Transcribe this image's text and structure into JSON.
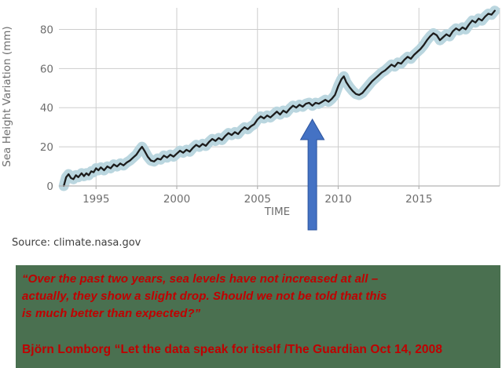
{
  "chart_data": {
    "type": "line",
    "title": "",
    "xlabel": "TIME",
    "ylabel": "Sea Height Variation (mm)",
    "xlim": [
      1992.7,
      2020
    ],
    "ylim": [
      0,
      91
    ],
    "x_ticks": [
      1995,
      2000,
      2005,
      2010,
      2015
    ],
    "y_ticks": [
      0,
      20,
      40,
      60,
      80
    ],
    "grid": true,
    "legend": "none",
    "axis_label_color": "#6e6e6e",
    "grid_color": "#cdcdcd",
    "series": [
      {
        "name": "Sea height variation",
        "line_color": "#1c1c1c",
        "band_color": "#bad6df",
        "band_halfwidth_mm": 2.6,
        "points": [
          [
            1993.0,
            0
          ],
          [
            1993.15,
            4.5
          ],
          [
            1993.3,
            6
          ],
          [
            1993.45,
            4
          ],
          [
            1993.6,
            3.5
          ],
          [
            1993.75,
            5.5
          ],
          [
            1993.9,
            4.5
          ],
          [
            1994.1,
            6.5
          ],
          [
            1994.25,
            5
          ],
          [
            1994.4,
            6.5
          ],
          [
            1994.55,
            5.5
          ],
          [
            1994.7,
            7.5
          ],
          [
            1994.85,
            7
          ],
          [
            1995.0,
            9
          ],
          [
            1995.15,
            8
          ],
          [
            1995.3,
            9.5
          ],
          [
            1995.5,
            8
          ],
          [
            1995.7,
            10
          ],
          [
            1995.9,
            9
          ],
          [
            1996.1,
            11
          ],
          [
            1996.3,
            10
          ],
          [
            1996.5,
            11.5
          ],
          [
            1996.7,
            10.5
          ],
          [
            1996.9,
            12
          ],
          [
            1997.1,
            13
          ],
          [
            1997.3,
            14.5
          ],
          [
            1997.5,
            16
          ],
          [
            1997.7,
            18.5
          ],
          [
            1997.85,
            20
          ],
          [
            1998.0,
            18
          ],
          [
            1998.2,
            15
          ],
          [
            1998.4,
            13
          ],
          [
            1998.6,
            12.5
          ],
          [
            1998.8,
            14
          ],
          [
            1999.0,
            13.5
          ],
          [
            1999.2,
            15.5
          ],
          [
            1999.4,
            14.5
          ],
          [
            1999.6,
            16
          ],
          [
            1999.8,
            15
          ],
          [
            2000.0,
            16.5
          ],
          [
            2000.2,
            18
          ],
          [
            2000.4,
            17
          ],
          [
            2000.6,
            18.5
          ],
          [
            2000.8,
            17.5
          ],
          [
            2001.0,
            19.5
          ],
          [
            2001.2,
            21
          ],
          [
            2001.4,
            20
          ],
          [
            2001.6,
            21.5
          ],
          [
            2001.8,
            20.5
          ],
          [
            2002.0,
            22.5
          ],
          [
            2002.2,
            24
          ],
          [
            2002.4,
            23
          ],
          [
            2002.6,
            24.5
          ],
          [
            2002.8,
            23.5
          ],
          [
            2003.0,
            25.5
          ],
          [
            2003.2,
            27
          ],
          [
            2003.4,
            26
          ],
          [
            2003.6,
            27.5
          ],
          [
            2003.8,
            26.5
          ],
          [
            2004.0,
            28.5
          ],
          [
            2004.2,
            30
          ],
          [
            2004.4,
            29
          ],
          [
            2004.6,
            30.5
          ],
          [
            2004.8,
            31.5
          ],
          [
            2005.0,
            34
          ],
          [
            2005.2,
            35.5
          ],
          [
            2005.4,
            34.5
          ],
          [
            2005.6,
            36
          ],
          [
            2005.8,
            35
          ],
          [
            2006.0,
            36.5
          ],
          [
            2006.2,
            38
          ],
          [
            2006.4,
            36.5
          ],
          [
            2006.6,
            38.5
          ],
          [
            2006.8,
            37.5
          ],
          [
            2007.0,
            39.5
          ],
          [
            2007.2,
            41
          ],
          [
            2007.4,
            40
          ],
          [
            2007.6,
            41.5
          ],
          [
            2007.8,
            40.5
          ],
          [
            2008.0,
            42
          ],
          [
            2008.2,
            42.5
          ],
          [
            2008.4,
            41
          ],
          [
            2008.6,
            42.5
          ],
          [
            2008.8,
            42
          ],
          [
            2009.0,
            43
          ],
          [
            2009.2,
            44
          ],
          [
            2009.4,
            43
          ],
          [
            2009.6,
            44.5
          ],
          [
            2009.8,
            46.5
          ],
          [
            2010.0,
            51
          ],
          [
            2010.2,
            54.5
          ],
          [
            2010.35,
            56
          ],
          [
            2010.5,
            53
          ],
          [
            2010.7,
            50.5
          ],
          [
            2010.9,
            48.5
          ],
          [
            2011.1,
            47
          ],
          [
            2011.3,
            46.5
          ],
          [
            2011.5,
            47.5
          ],
          [
            2011.7,
            49.5
          ],
          [
            2011.9,
            51.5
          ],
          [
            2012.1,
            53.5
          ],
          [
            2012.3,
            55
          ],
          [
            2012.5,
            56.5
          ],
          [
            2012.7,
            58
          ],
          [
            2012.9,
            59
          ],
          [
            2013.1,
            60.5
          ],
          [
            2013.3,
            62
          ],
          [
            2013.5,
            61
          ],
          [
            2013.7,
            63
          ],
          [
            2013.9,
            62.5
          ],
          [
            2014.1,
            64.5
          ],
          [
            2014.3,
            66
          ],
          [
            2014.5,
            65
          ],
          [
            2014.7,
            67
          ],
          [
            2014.9,
            68.5
          ],
          [
            2015.1,
            70
          ],
          [
            2015.3,
            72
          ],
          [
            2015.5,
            74.5
          ],
          [
            2015.7,
            76.5
          ],
          [
            2015.9,
            78
          ],
          [
            2016.1,
            77
          ],
          [
            2016.3,
            74.5
          ],
          [
            2016.5,
            76
          ],
          [
            2016.7,
            77.5
          ],
          [
            2016.9,
            76.5
          ],
          [
            2017.1,
            79
          ],
          [
            2017.3,
            80.5
          ],
          [
            2017.5,
            79.5
          ],
          [
            2017.7,
            81
          ],
          [
            2017.9,
            80
          ],
          [
            2018.1,
            82.5
          ],
          [
            2018.3,
            84.5
          ],
          [
            2018.5,
            83.5
          ],
          [
            2018.7,
            85.5
          ],
          [
            2018.9,
            84.5
          ],
          [
            2019.1,
            86.5
          ],
          [
            2019.3,
            88
          ],
          [
            2019.5,
            87.5
          ],
          [
            2019.7,
            89.5
          ]
        ]
      }
    ],
    "annotation": {
      "type": "up-arrow",
      "x": 2008.4,
      "color": "#4472c4",
      "outline": "#2c549e"
    }
  },
  "chart_meta": {
    "source": "Source: climate.nasa.gov"
  },
  "quote_box": {
    "background": "#4a7050",
    "text_color": "#c00000",
    "quote": "“Over the past two years, sea levels have not increased at all –\nactually, they show a slight drop. Should we not be told that this\nis much better than expected?”",
    "attribution": "Björn Lomborg “Let the data speak for itself /The Guardian Oct 14, 2008"
  }
}
